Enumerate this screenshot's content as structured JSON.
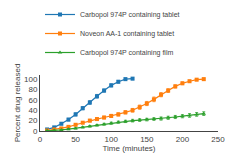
{
  "chart_data": {
    "type": "line",
    "xlabel": "Time (minutes)",
    "ylabel": "Percent drug released",
    "xlim": [
      0,
      250
    ],
    "ylim": [
      0,
      108
    ],
    "xticks": [
      0,
      50,
      100,
      150,
      200,
      250
    ],
    "yticks": [
      0,
      20,
      40,
      60,
      80,
      100
    ],
    "grid": false,
    "legend": "top",
    "series": [
      {
        "name": "Carbopol 974P containing tablet",
        "marker": "square",
        "x": [
          10,
          20,
          30,
          40,
          50,
          60,
          70,
          80,
          90,
          100,
          110,
          120,
          130
        ],
        "values": [
          3,
          7,
          14,
          22,
          32,
          44,
          55,
          67,
          78,
          88,
          95,
          100,
          101
        ],
        "yerr": [
          1,
          1.5,
          2,
          2.5,
          3,
          3,
          3.5,
          3.5,
          3,
          3,
          2.5,
          2,
          2
        ]
      },
      {
        "name": "Noveon AA-1 containing tablet",
        "marker": "square",
        "x": [
          10,
          20,
          30,
          40,
          50,
          60,
          70,
          80,
          90,
          100,
          110,
          120,
          130,
          140,
          150,
          160,
          170,
          180,
          190,
          200,
          210,
          220,
          230
        ],
        "values": [
          1,
          3,
          5,
          8,
          12,
          16,
          20,
          23,
          26,
          29,
          32,
          36,
          40,
          46,
          53,
          61,
          70,
          78,
          86,
          92,
          96,
          99,
          100
        ],
        "yerr": [
          0.5,
          1,
          1.5,
          2,
          2,
          2,
          2.5,
          2.5,
          2.5,
          3,
          3,
          3,
          3.5,
          4,
          4,
          4.5,
          4,
          3.5,
          3,
          2.5,
          2,
          2,
          2
        ]
      },
      {
        "name": "Carbopol 974P containing film",
        "marker": "triangle",
        "x": [
          10,
          20,
          30,
          40,
          50,
          60,
          70,
          80,
          90,
          100,
          110,
          120,
          130,
          140,
          150,
          160,
          170,
          180,
          190,
          200,
          210,
          220,
          230
        ],
        "values": [
          0.5,
          1,
          2,
          3.5,
          5,
          7,
          9,
          11,
          13,
          15,
          17,
          18.5,
          20,
          21,
          22,
          23,
          24,
          25.5,
          27,
          28.5,
          30,
          32,
          33.5
        ],
        "yerr": [
          0.3,
          0.5,
          0.8,
          1,
          1,
          1.2,
          1.5,
          1.5,
          1.8,
          2,
          2,
          2.2,
          2.5,
          2.5,
          2.5,
          2.5,
          3,
          3,
          3,
          3,
          3.5,
          3.5,
          3.5
        ]
      }
    ]
  }
}
